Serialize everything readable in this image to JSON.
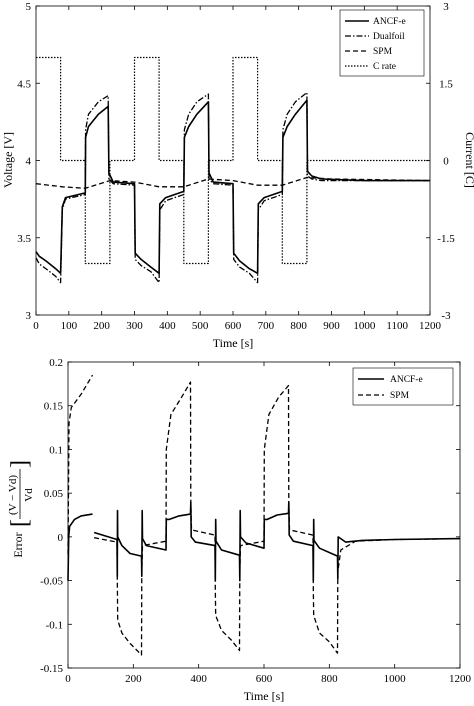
{
  "chart_data": [
    {
      "type": "line",
      "xlabel": "Time [s]",
      "ylabel": "Voltage [V]",
      "y2label": "Current [C]",
      "xlim": [
        0,
        1200
      ],
      "ylim": [
        3,
        5
      ],
      "y2lim": [
        -3,
        3
      ],
      "xticks": [
        "0",
        "100",
        "200",
        "300",
        "400",
        "500",
        "600",
        "700",
        "800",
        "900",
        "1000",
        "1100",
        "1200"
      ],
      "yticks": [
        "3",
        "3.5",
        "4",
        "4.5",
        "5"
      ],
      "y2ticks": [
        "-3",
        "-1.5",
        "0",
        "1.5",
        "3"
      ],
      "legend_position": "top-right",
      "series": [
        {
          "name": "ANCF-e",
          "axis": "left",
          "style": "solid",
          "points": [
            [
              0,
              3.41
            ],
            [
              10,
              3.38
            ],
            [
              30,
              3.35
            ],
            [
              60,
              3.3
            ],
            [
              75,
              3.27
            ],
            [
              80,
              3.7
            ],
            [
              90,
              3.76
            ],
            [
              150,
              3.79
            ],
            [
              151,
              4.15
            ],
            [
              160,
              4.22
            ],
            [
              190,
              4.3
            ],
            [
              220,
              4.35
            ],
            [
              222,
              3.92
            ],
            [
              235,
              3.86
            ],
            [
              300,
              3.85
            ],
            [
              302,
              3.4
            ],
            [
              320,
              3.36
            ],
            [
              350,
              3.31
            ],
            [
              375,
              3.27
            ],
            [
              377,
              3.72
            ],
            [
              395,
              3.76
            ],
            [
              450,
              3.8
            ],
            [
              452,
              4.15
            ],
            [
              465,
              4.22
            ],
            [
              490,
              4.3
            ],
            [
              525,
              4.38
            ],
            [
              527,
              3.92
            ],
            [
              540,
              3.86
            ],
            [
              600,
              3.85
            ],
            [
              602,
              3.4
            ],
            [
              620,
              3.35
            ],
            [
              650,
              3.3
            ],
            [
              675,
              3.27
            ],
            [
              677,
              3.72
            ],
            [
              695,
              3.76
            ],
            [
              750,
              3.8
            ],
            [
              752,
              4.15
            ],
            [
              765,
              4.22
            ],
            [
              790,
              4.3
            ],
            [
              825,
              4.39
            ],
            [
              827,
              3.93
            ],
            [
              840,
              3.9
            ],
            [
              870,
              3.88
            ],
            [
              1000,
              3.87
            ],
            [
              1200,
              3.87
            ]
          ]
        },
        {
          "name": "Dualfoil",
          "axis": "left",
          "style": "dashdot",
          "points": [
            [
              0,
              3.37
            ],
            [
              10,
              3.33
            ],
            [
              30,
              3.3
            ],
            [
              60,
              3.25
            ],
            [
              75,
              3.21
            ],
            [
              80,
              3.68
            ],
            [
              90,
              3.75
            ],
            [
              150,
              3.78
            ],
            [
              151,
              4.2
            ],
            [
              160,
              4.3
            ],
            [
              190,
              4.38
            ],
            [
              220,
              4.42
            ],
            [
              222,
              3.88
            ],
            [
              235,
              3.85
            ],
            [
              300,
              3.84
            ],
            [
              302,
              3.36
            ],
            [
              320,
              3.32
            ],
            [
              350,
              3.28
            ],
            [
              375,
              3.21
            ],
            [
              377,
              3.68
            ],
            [
              395,
              3.74
            ],
            [
              450,
              3.78
            ],
            [
              452,
              4.2
            ],
            [
              465,
              4.3
            ],
            [
              490,
              4.38
            ],
            [
              525,
              4.43
            ],
            [
              527,
              3.88
            ],
            [
              540,
              3.85
            ],
            [
              600,
              3.84
            ],
            [
              602,
              3.36
            ],
            [
              620,
              3.31
            ],
            [
              650,
              3.27
            ],
            [
              675,
              3.21
            ],
            [
              677,
              3.68
            ],
            [
              695,
              3.74
            ],
            [
              750,
              3.78
            ],
            [
              752,
              4.2
            ],
            [
              765,
              4.3
            ],
            [
              790,
              4.38
            ],
            [
              825,
              4.44
            ],
            [
              827,
              3.9
            ],
            [
              840,
              3.88
            ],
            [
              870,
              3.87
            ],
            [
              1000,
              3.87
            ],
            [
              1200,
              3.87
            ]
          ]
        },
        {
          "name": "SPM",
          "axis": "left",
          "style": "dashed",
          "points": [
            [
              0,
              3.85
            ],
            [
              80,
              3.83
            ],
            [
              150,
              3.82
            ],
            [
              225,
              3.87
            ],
            [
              300,
              3.86
            ],
            [
              375,
              3.83
            ],
            [
              450,
              3.83
            ],
            [
              525,
              3.88
            ],
            [
              600,
              3.87
            ],
            [
              675,
              3.84
            ],
            [
              750,
              3.84
            ],
            [
              825,
              3.89
            ],
            [
              900,
              3.88
            ],
            [
              1200,
              3.87
            ]
          ]
        },
        {
          "name": "C rate",
          "axis": "right",
          "style": "dotted",
          "points": [
            [
              0,
              2
            ],
            [
              75,
              2
            ],
            [
              75,
              0
            ],
            [
              150,
              0
            ],
            [
              150,
              -2
            ],
            [
              225,
              -2
            ],
            [
              225,
              0
            ],
            [
              300,
              0
            ],
            [
              300,
              2
            ],
            [
              375,
              2
            ],
            [
              375,
              0
            ],
            [
              450,
              0
            ],
            [
              450,
              -2
            ],
            [
              525,
              -2
            ],
            [
              525,
              0
            ],
            [
              600,
              0
            ],
            [
              600,
              2
            ],
            [
              675,
              2
            ],
            [
              675,
              0
            ],
            [
              750,
              0
            ],
            [
              750,
              -2
            ],
            [
              825,
              -2
            ],
            [
              825,
              0
            ],
            [
              1200,
              0
            ]
          ]
        }
      ]
    },
    {
      "type": "line",
      "xlabel": "Time [s]",
      "ylabel": "Error",
      "ylabel_expr_num": "(V − Vd)",
      "ylabel_expr_den": "Vd",
      "xlim": [
        0,
        1200
      ],
      "ylim": [
        -0.15,
        0.2
      ],
      "xticks": [
        "0",
        "200",
        "400",
        "600",
        "800",
        "1000",
        "1200"
      ],
      "yticks": [
        "-0.15",
        "-0.1",
        "-0.05",
        "0",
        "0.05",
        "0.1",
        "0.15",
        "0.2"
      ],
      "legend_position": "top-right",
      "series": [
        {
          "name": "ANCF-e",
          "style": "solid",
          "points": [
            [
              0,
              -0.05
            ],
            [
              2,
              0.0
            ],
            [
              5,
              0.012
            ],
            [
              20,
              0.02
            ],
            [
              40,
              0.024
            ],
            [
              75,
              0.026
            ],
            [
              null,
              null
            ],
            [
              80,
              0.005
            ],
            [
              150,
              -0.003
            ],
            [
              151,
              -0.045
            ],
            [
              151.5,
              0.03
            ],
            [
              152,
              0.0
            ],
            [
              165,
              -0.01
            ],
            [
              190,
              -0.019
            ],
            [
              225,
              -0.022
            ],
            [
              226,
              -0.045
            ],
            [
              227,
              0.03
            ],
            [
              228,
              -0.002
            ],
            [
              240,
              -0.01
            ],
            [
              300,
              -0.015
            ],
            [
              301,
              0.02
            ],
            [
              310,
              0.02
            ],
            [
              340,
              0.024
            ],
            [
              375,
              0.026
            ],
            [
              376,
              0.04
            ],
            [
              377,
              0.0
            ],
            [
              390,
              -0.006
            ],
            [
              450,
              -0.01
            ],
            [
              451,
              -0.05
            ],
            [
              452,
              0.02
            ],
            [
              453,
              -0.005
            ],
            [
              470,
              -0.015
            ],
            [
              525,
              -0.021
            ],
            [
              526,
              -0.05
            ],
            [
              527,
              0.03
            ],
            [
              528,
              0.0
            ],
            [
              545,
              -0.007
            ],
            [
              600,
              -0.013
            ],
            [
              601,
              0.02
            ],
            [
              610,
              0.02
            ],
            [
              640,
              0.025
            ],
            [
              675,
              0.027
            ],
            [
              676,
              0.04
            ],
            [
              677,
              0.002
            ],
            [
              690,
              -0.005
            ],
            [
              750,
              -0.01
            ],
            [
              751,
              -0.05
            ],
            [
              752,
              0.02
            ],
            [
              753,
              -0.004
            ],
            [
              770,
              -0.013
            ],
            [
              825,
              -0.022
            ],
            [
              826,
              -0.048
            ],
            [
              827,
              0.0
            ],
            [
              850,
              -0.006
            ],
            [
              900,
              -0.004
            ],
            [
              1000,
              -0.003
            ],
            [
              1200,
              -0.002
            ]
          ]
        },
        {
          "name": "SPM",
          "style": "dashed",
          "points": [
            [
              0,
              -0.02
            ],
            [
              3,
              0.13
            ],
            [
              10,
              0.148
            ],
            [
              40,
              0.163
            ],
            [
              75,
              0.185
            ],
            [
              null,
              null
            ],
            [
              80,
              -0.001
            ],
            [
              150,
              -0.006
            ],
            [
              151,
              -0.048
            ],
            [
              152,
              -0.095
            ],
            [
              165,
              -0.11
            ],
            [
              190,
              -0.122
            ],
            [
              225,
              -0.135
            ],
            [
              226,
              -0.04
            ],
            [
              228,
              -0.01
            ],
            [
              300,
              -0.005
            ],
            [
              301,
              0.1
            ],
            [
              315,
              0.14
            ],
            [
              345,
              0.158
            ],
            [
              375,
              0.177
            ],
            [
              376,
              0.04
            ],
            [
              378,
              0.008
            ],
            [
              450,
              0.002
            ],
            [
              451,
              -0.06
            ],
            [
              452,
              -0.09
            ],
            [
              470,
              -0.107
            ],
            [
              500,
              -0.118
            ],
            [
              525,
              -0.13
            ],
            [
              526,
              -0.04
            ],
            [
              528,
              -0.01
            ],
            [
              600,
              -0.005
            ],
            [
              601,
              0.1
            ],
            [
              615,
              0.14
            ],
            [
              645,
              0.16
            ],
            [
              675,
              0.173
            ],
            [
              676,
              0.04
            ],
            [
              678,
              0.008
            ],
            [
              750,
              0.002
            ],
            [
              751,
              -0.06
            ],
            [
              752,
              -0.09
            ],
            [
              770,
              -0.11
            ],
            [
              800,
              -0.12
            ],
            [
              825,
              -0.133
            ],
            [
              826,
              -0.04
            ],
            [
              835,
              -0.015
            ],
            [
              880,
              -0.005
            ],
            [
              1000,
              -0.003
            ],
            [
              1200,
              -0.002
            ]
          ]
        }
      ]
    }
  ]
}
